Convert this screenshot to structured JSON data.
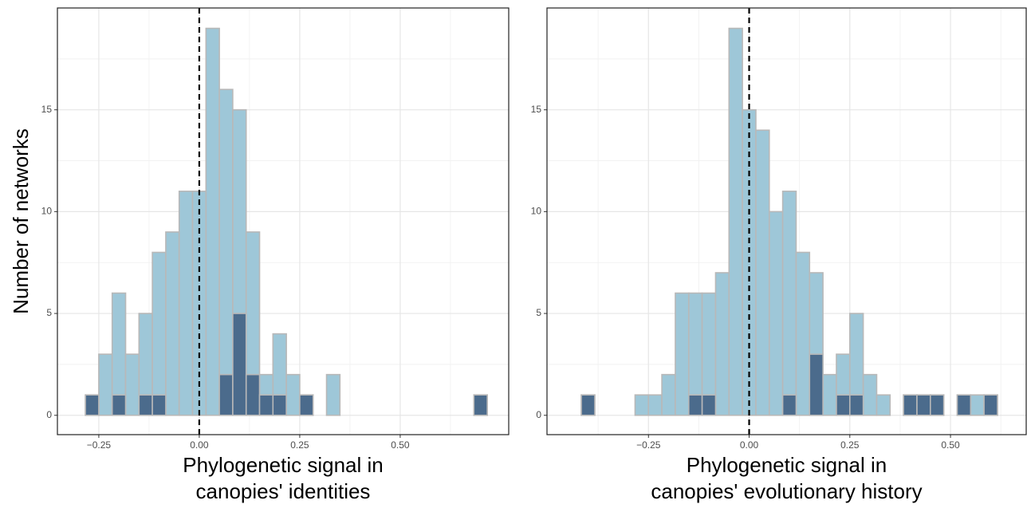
{
  "chart_data": [
    {
      "type": "histogram",
      "bins": [
        -0.2833,
        -0.25,
        -0.2167,
        -0.1833,
        -0.15,
        -0.1167,
        -0.0833,
        -0.05,
        -0.0167,
        0.0167,
        0.05,
        0.0833,
        0.1167,
        0.15,
        0.1833,
        0.2167,
        0.25,
        0.2833,
        0.3167,
        0.35,
        0.3833,
        0.4167,
        0.45,
        0.4833,
        0.5167,
        0.55,
        0.5833,
        0.6167,
        0.65,
        0.6833,
        0.7167
      ],
      "series": [
        {
          "color": "#9ec7d8",
          "values": [
            1,
            3,
            6,
            3,
            5,
            8,
            9,
            11,
            11,
            19,
            16,
            15,
            9,
            2,
            4,
            2,
            1,
            0,
            2,
            0,
            0,
            0,
            0,
            0,
            0,
            0,
            0,
            0,
            0,
            1
          ]
        },
        {
          "color": "#4b6b8c",
          "values": [
            1,
            0,
            1,
            0,
            1,
            1,
            0,
            0,
            0,
            0,
            2,
            5,
            2,
            1,
            1,
            0,
            1,
            0,
            0,
            0,
            0,
            0,
            0,
            0,
            0,
            0,
            0,
            0,
            0,
            1
          ]
        }
      ],
      "xlim": [
        -0.353,
        0.77
      ],
      "ylim": [
        -0.95,
        20
      ],
      "xticks": [
        {
          "value": -0.25,
          "label": "−0.25"
        },
        {
          "value": 0,
          "label": "0.00"
        },
        {
          "value": 0.25,
          "label": "0.25"
        },
        {
          "value": 0.5,
          "label": "0.50"
        }
      ],
      "xminor": [
        -0.125,
        0.125,
        0.375,
        0.625
      ],
      "yticks": [
        0,
        5,
        10,
        15
      ],
      "yminor": [
        2.5,
        7.5,
        12.5,
        17.5
      ],
      "vline": 0,
      "grid": true,
      "ylabel": "Number of networks",
      "xlabel": [
        "Phylogenetic signal in",
        "canopies' identities"
      ]
    },
    {
      "type": "histogram",
      "bins": [
        -0.4167,
        -0.3833,
        -0.35,
        -0.3167,
        -0.2833,
        -0.25,
        -0.2167,
        -0.1833,
        -0.15,
        -0.1167,
        -0.0833,
        -0.05,
        -0.0167,
        0.0167,
        0.05,
        0.0833,
        0.1167,
        0.15,
        0.1833,
        0.2167,
        0.25,
        0.2833,
        0.3167,
        0.35,
        0.3833,
        0.4167,
        0.45,
        0.4833,
        0.5167,
        0.55,
        0.5833,
        0.6167
      ],
      "series": [
        {
          "color": "#9ec7d8",
          "values": [
            1,
            0,
            0,
            0,
            1,
            1,
            2,
            6,
            6,
            6,
            7,
            19,
            15,
            14,
            10,
            11,
            8,
            7,
            2,
            3,
            5,
            2,
            1,
            0,
            1,
            1,
            1,
            0,
            1,
            1,
            1
          ]
        },
        {
          "color": "#4b6b8c",
          "values": [
            1,
            0,
            0,
            0,
            0,
            0,
            0,
            0,
            1,
            1,
            0,
            0,
            0,
            0,
            0,
            1,
            0,
            3,
            0,
            1,
            1,
            0,
            0,
            0,
            1,
            1,
            1,
            0,
            1,
            0,
            1
          ]
        }
      ],
      "xlim": [
        -0.502,
        0.688
      ],
      "ylim": [
        -0.95,
        20
      ],
      "xticks": [
        {
          "value": -0.25,
          "label": "−0.25"
        },
        {
          "value": 0,
          "label": "0.00"
        },
        {
          "value": 0.25,
          "label": "0.25"
        },
        {
          "value": 0.5,
          "label": "0.50"
        }
      ],
      "xminor": [
        -0.375,
        -0.125,
        0.125,
        0.375,
        0.625
      ],
      "yticks": [
        0,
        5,
        10,
        15
      ],
      "yminor": [
        2.5,
        7.5,
        12.5,
        17.5
      ],
      "vline": 0,
      "grid": true,
      "xlabel": [
        "Phylogenetic signal in",
        "canopies' evolutionary history"
      ]
    }
  ]
}
